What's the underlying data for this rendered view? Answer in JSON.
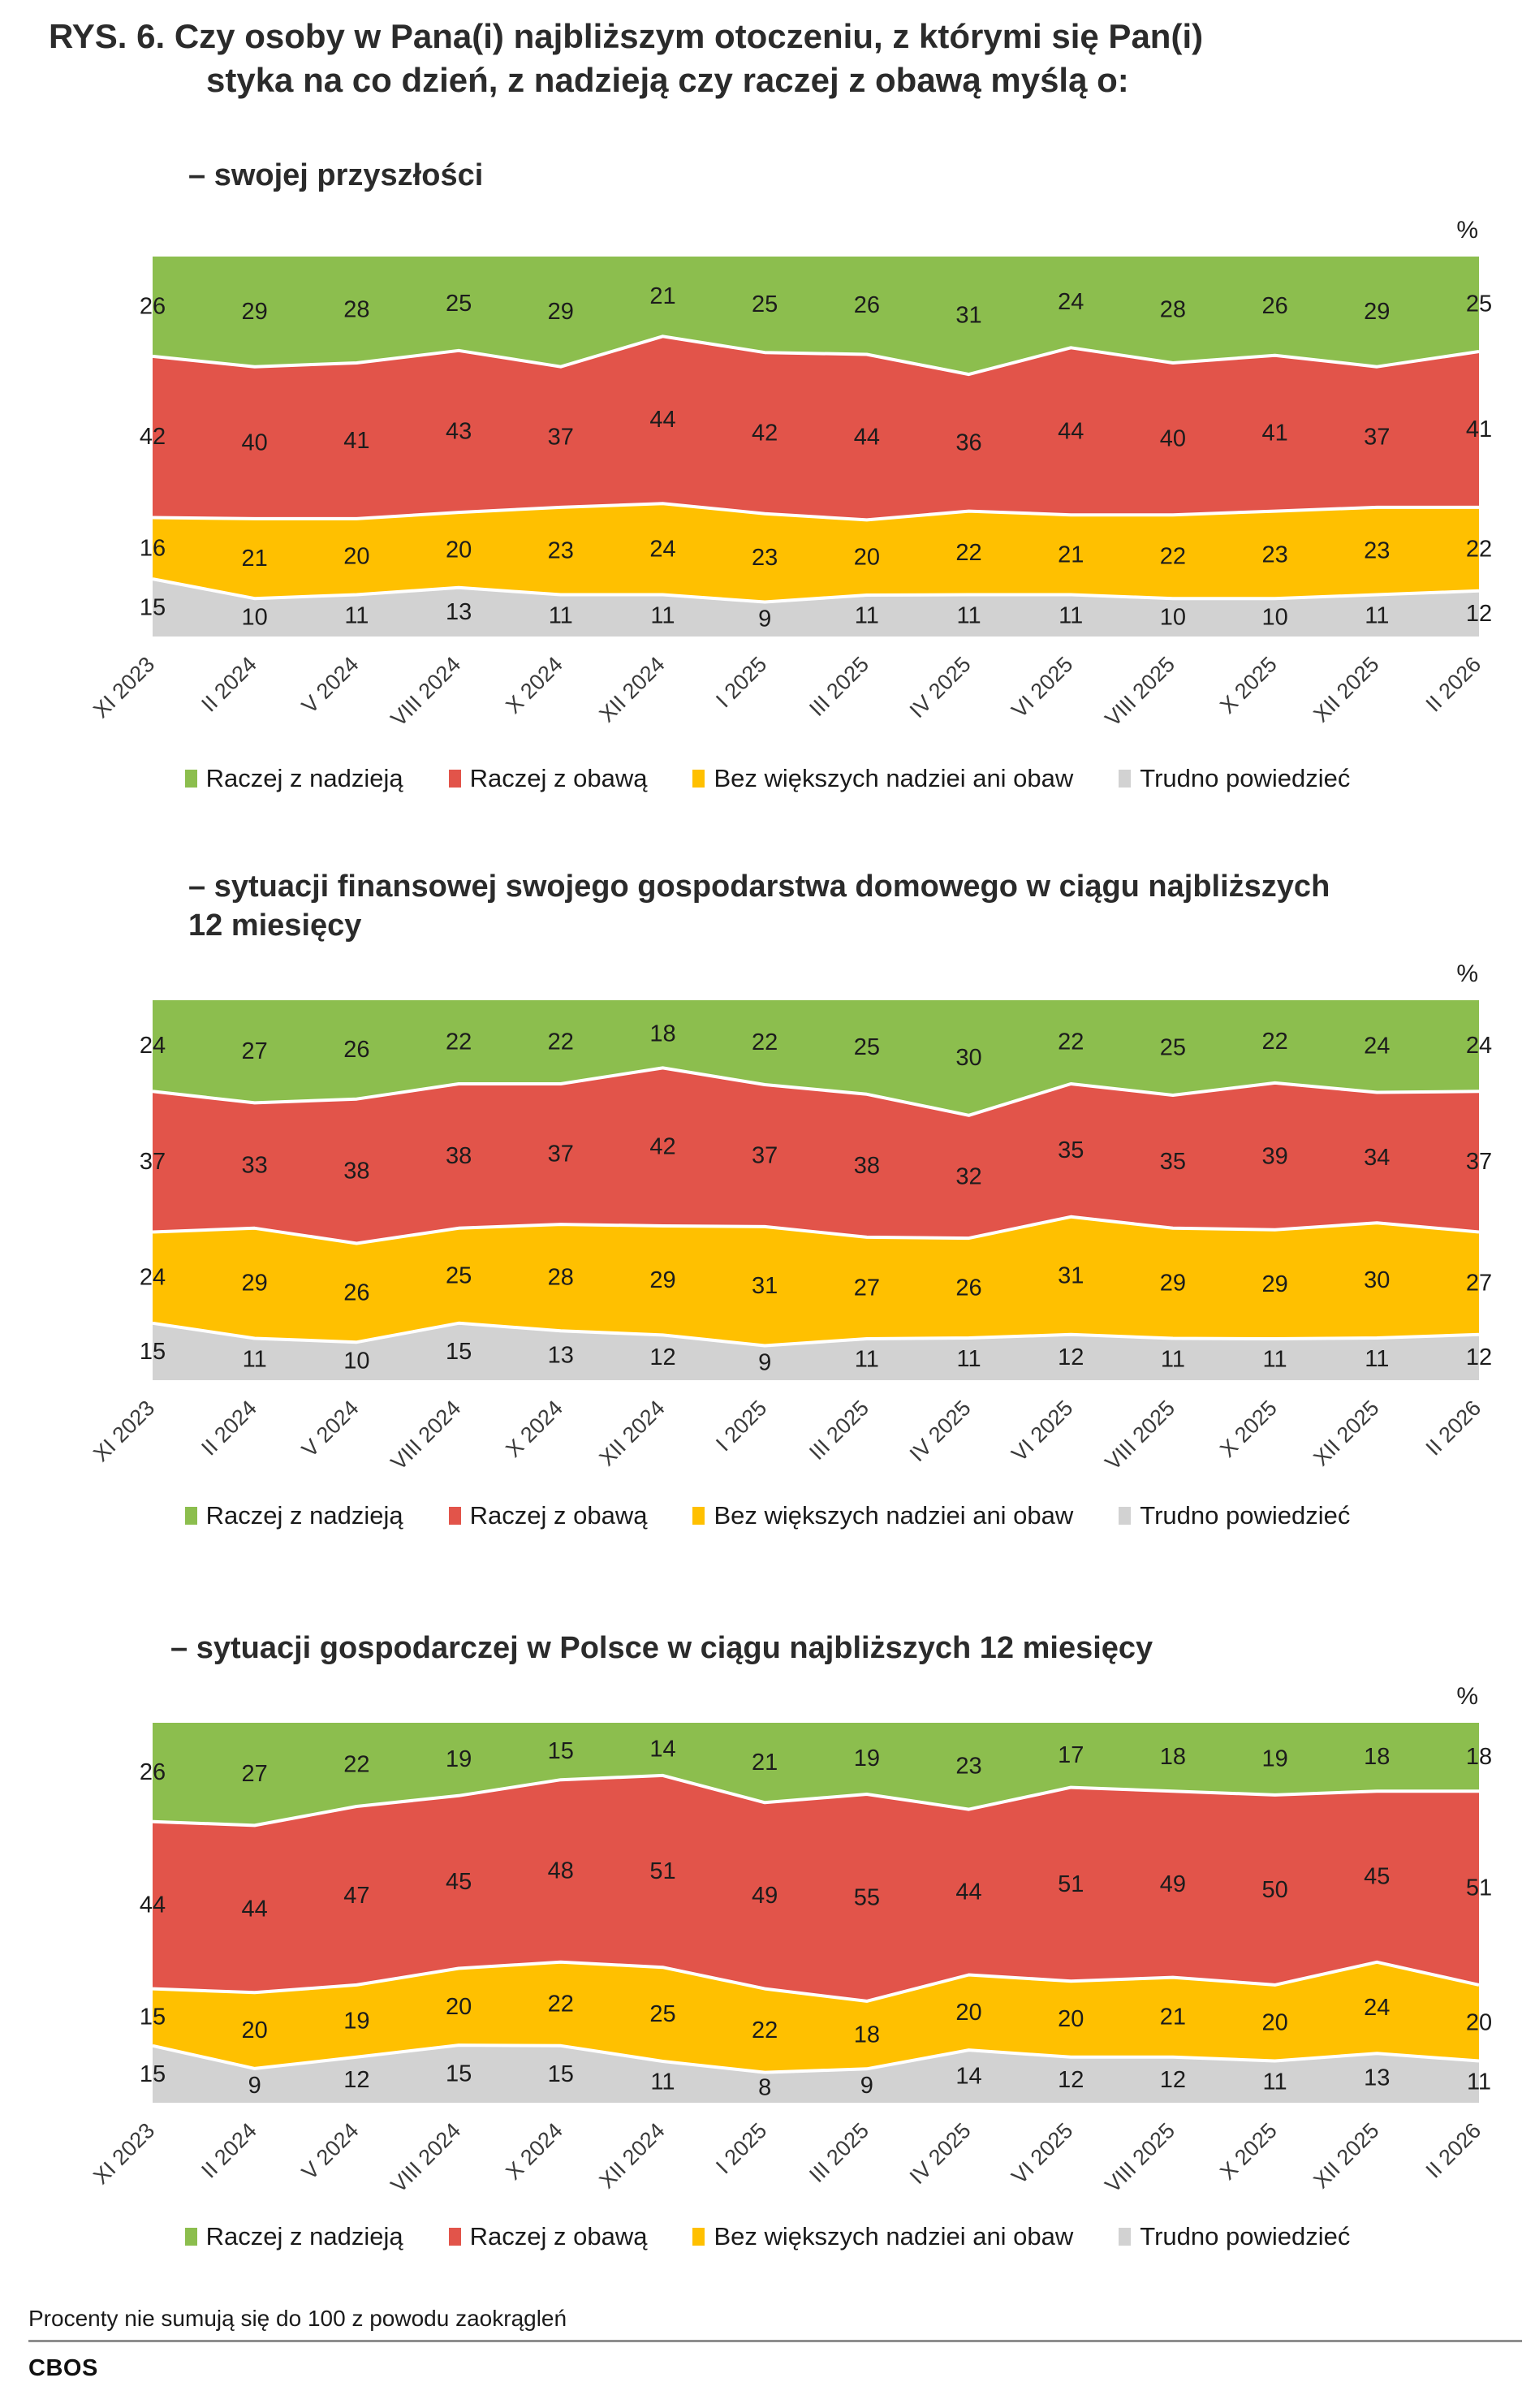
{
  "page": {
    "title": "RYS. 6. Czy osoby w Pana(i) najbliższym otoczeniu, z którymi się Pan(i)\nstyka na co dzień, z nadzieją czy raczej z obawą myślą o:",
    "footnote": "Procenty nie sumują się do 100 z powodu zaokrągleń",
    "brand": "CBOS"
  },
  "colors": {
    "hope_green": "#8CBE4E",
    "fear_red": "#E2544A",
    "neutral_yellow": "#FFC000",
    "dk_gray": "#D2D2D2",
    "divider_white": "#FFFFFF"
  },
  "legend_items": [
    {
      "key": "raczej-z-nadzieja",
      "label": "Raczej z nadzieją",
      "color": "hope_green"
    },
    {
      "key": "raczej-z-obawa",
      "label": "Raczej z obawą",
      "color": "fear_red"
    },
    {
      "key": "bez-wiekszych-nadziei-ani-obaw",
      "label": "Bez większych nadziei ani obaw",
      "color": "neutral_yellow"
    },
    {
      "key": "trudno-powiedziec",
      "label": "Trudno powiedzieć",
      "color": "dk_gray"
    }
  ],
  "chart_data": [
    {
      "type": "area",
      "stacked": true,
      "normalized": "per-column-sum",
      "grid": false,
      "legend_position": "bottom",
      "title": "– swojej przyszłości",
      "unit": "%",
      "categories": [
        "XI 2023",
        "II 2024",
        "V 2024",
        "VIII 2024",
        "X 2024",
        "XII 2024",
        "I 2025",
        "III 2025",
        "IV 2025",
        "VI 2025",
        "VIII 2025",
        "X 2025",
        "XII 2025",
        "II 2026"
      ],
      "series": [
        {
          "key": "raczej-z-nadzieja",
          "name": "Raczej z nadzieją",
          "color": "hope_green",
          "values": [
            26,
            29,
            28,
            25,
            29,
            21,
            25,
            26,
            31,
            24,
            28,
            26,
            29,
            25
          ]
        },
        {
          "key": "raczej-z-obawa",
          "name": "Raczej z obawą",
          "color": "fear_red",
          "values": [
            42,
            40,
            41,
            43,
            37,
            44,
            42,
            44,
            36,
            44,
            40,
            41,
            37,
            41
          ]
        },
        {
          "key": "bez-wiekszych-nadziei-ani-obaw",
          "name": "Bez większych nadziei ani obaw",
          "color": "neutral_yellow",
          "values": [
            16,
            21,
            20,
            20,
            23,
            24,
            23,
            20,
            22,
            21,
            22,
            23,
            23,
            22
          ]
        },
        {
          "key": "trudno-powiedziec",
          "name": "Trudno powiedzieć",
          "color": "dk_gray",
          "values": [
            15,
            10,
            11,
            13,
            11,
            11,
            9,
            11,
            11,
            11,
            10,
            10,
            11,
            12
          ]
        }
      ]
    },
    {
      "type": "area",
      "stacked": true,
      "normalized": "per-column-sum",
      "grid": false,
      "legend_position": "bottom",
      "title": "– sytuacji finansowej swojego gospodarstwa domowego w ciągu najbliższych\n12 miesięcy",
      "unit": "%",
      "categories": [
        "XI 2023",
        "II 2024",
        "V 2024",
        "VIII 2024",
        "X 2024",
        "XII 2024",
        "I 2025",
        "III 2025",
        "IV 2025",
        "VI 2025",
        "VIII 2025",
        "X 2025",
        "XII 2025",
        "II 2026"
      ],
      "series": [
        {
          "key": "raczej-z-nadzieja",
          "name": "Raczej z nadzieją",
          "color": "hope_green",
          "values": [
            24,
            27,
            26,
            22,
            22,
            18,
            22,
            25,
            30,
            22,
            25,
            22,
            24,
            24
          ]
        },
        {
          "key": "raczej-z-obawa",
          "name": "Raczej z obawą",
          "color": "fear_red",
          "values": [
            37,
            33,
            38,
            38,
            37,
            42,
            37,
            38,
            32,
            35,
            35,
            39,
            34,
            37
          ]
        },
        {
          "key": "bez-wiekszych-nadziei-ani-obaw",
          "name": "Bez większych nadziei ani obaw",
          "color": "neutral_yellow",
          "values": [
            24,
            29,
            26,
            25,
            28,
            29,
            31,
            27,
            26,
            31,
            29,
            29,
            30,
            27
          ]
        },
        {
          "key": "trudno-powiedziec",
          "name": "Trudno powiedzieć",
          "color": "dk_gray",
          "values": [
            15,
            11,
            10,
            15,
            13,
            12,
            9,
            11,
            11,
            12,
            11,
            11,
            11,
            12
          ]
        }
      ]
    },
    {
      "type": "area",
      "stacked": true,
      "normalized": "per-column-sum",
      "grid": false,
      "legend_position": "bottom",
      "title": "– sytuacji gospodarczej w Polsce w ciągu najbliższych 12 miesięcy",
      "unit": "%",
      "categories": [
        "XI 2023",
        "II 2024",
        "V 2024",
        "VIII 2024",
        "X 2024",
        "XII 2024",
        "I 2025",
        "III 2025",
        "IV 2025",
        "VI 2025",
        "VIII 2025",
        "X 2025",
        "XII 2025",
        "II 2026"
      ],
      "series": [
        {
          "key": "raczej-z-nadzieja",
          "name": "Raczej z nadzieją",
          "color": "hope_green",
          "values": [
            26,
            27,
            22,
            19,
            15,
            14,
            21,
            19,
            23,
            17,
            18,
            19,
            18,
            18
          ]
        },
        {
          "key": "raczej-z-obawa",
          "name": "Raczej z obawą",
          "color": "fear_red",
          "values": [
            44,
            44,
            47,
            45,
            48,
            51,
            49,
            55,
            44,
            51,
            49,
            50,
            45,
            51
          ]
        },
        {
          "key": "bez-wiekszych-nadziei-ani-obaw",
          "name": "Bez większych nadziei ani obaw",
          "color": "neutral_yellow",
          "values": [
            15,
            20,
            19,
            20,
            22,
            25,
            22,
            18,
            20,
            20,
            21,
            20,
            24,
            20
          ]
        },
        {
          "key": "trudno-powiedziec",
          "name": "Trudno powiedzieć",
          "color": "dk_gray",
          "values": [
            15,
            9,
            12,
            15,
            15,
            11,
            8,
            9,
            14,
            12,
            12,
            11,
            13,
            11
          ]
        }
      ]
    }
  ]
}
